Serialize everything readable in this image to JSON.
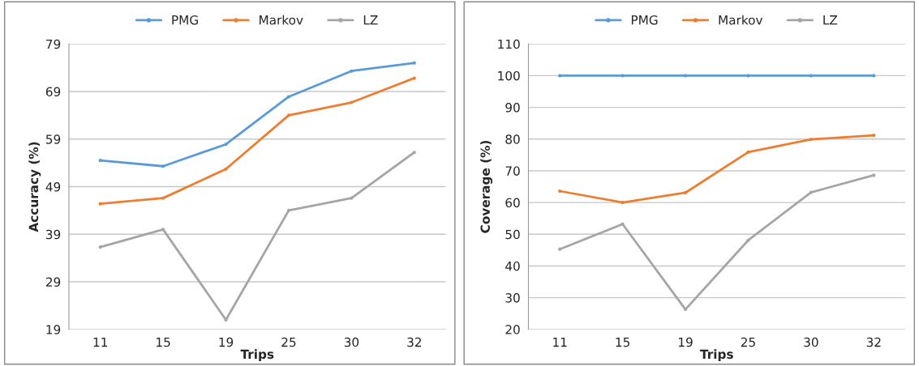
{
  "chart_data": [
    {
      "type": "line",
      "xlabel": "Trips",
      "ylabel": "Accuracy (%)",
      "categories": [
        "11",
        "15",
        "19",
        "25",
        "30",
        "32"
      ],
      "ylim": [
        19,
        79
      ],
      "yticks": [
        19,
        29,
        39,
        49,
        59,
        69,
        79
      ],
      "grid": "y",
      "legend": "top",
      "marker": "circle",
      "series": [
        {
          "name": "PMG",
          "color": "#5b9bd5",
          "values": [
            54.5,
            53.3,
            57.9,
            67.9,
            73.3,
            75.0
          ]
        },
        {
          "name": "Markov",
          "color": "#ed7d31",
          "values": [
            45.4,
            46.6,
            52.7,
            64.0,
            66.7,
            71.8
          ]
        },
        {
          "name": "LZ",
          "color": "#a5a5a5",
          "values": [
            36.3,
            40.0,
            21.0,
            44.0,
            46.6,
            56.2
          ]
        }
      ]
    },
    {
      "type": "line",
      "xlabel": "Trips",
      "ylabel": "Coverage (%)",
      "categories": [
        "11",
        "15",
        "19",
        "25",
        "30",
        "32"
      ],
      "ylim": [
        20,
        110
      ],
      "yticks": [
        20,
        30,
        40,
        50,
        60,
        70,
        80,
        90,
        100,
        110
      ],
      "grid": "y",
      "legend": "top",
      "marker": "circle",
      "series": [
        {
          "name": "PMG",
          "color": "#5b9bd5",
          "values": [
            100,
            100,
            100,
            100,
            100,
            100
          ]
        },
        {
          "name": "Markov",
          "color": "#ed7d31",
          "values": [
            63.6,
            60.0,
            63.1,
            75.9,
            79.9,
            81.2
          ]
        },
        {
          "name": "LZ",
          "color": "#a5a5a5",
          "values": [
            45.3,
            53.2,
            26.3,
            48.1,
            63.2,
            68.6
          ]
        }
      ]
    }
  ]
}
